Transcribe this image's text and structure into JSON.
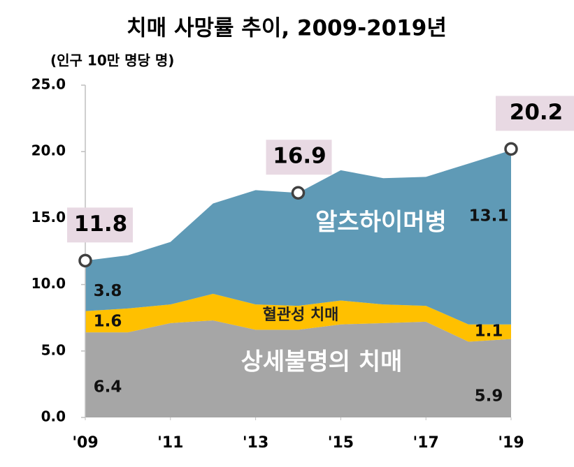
{
  "chart_data": {
    "type": "stacked_area",
    "title": "치매 사망률 추이, 2009-2019년",
    "y_label": "(인구 10만 명당 명)",
    "x": [
      2009,
      2010,
      2011,
      2012,
      2013,
      2014,
      2015,
      2016,
      2017,
      2018,
      2019
    ],
    "xlim": [
      2009,
      2019
    ],
    "xticks": [
      {
        "value": 2009,
        "label": "'09"
      },
      {
        "value": 2011,
        "label": "'11"
      },
      {
        "value": 2013,
        "label": "'13"
      },
      {
        "value": 2015,
        "label": "'15"
      },
      {
        "value": 2017,
        "label": "'17"
      },
      {
        "value": 2019,
        "label": "'19"
      }
    ],
    "ylim": [
      0,
      25
    ],
    "yticks": [
      {
        "value": 0,
        "label": "0.0"
      },
      {
        "value": 5,
        "label": "5.0"
      },
      {
        "value": 10,
        "label": "10.0"
      },
      {
        "value": 15,
        "label": "15.0"
      },
      {
        "value": 20,
        "label": "20.0"
      },
      {
        "value": 25,
        "label": "25.0"
      }
    ],
    "data_labels": "ends",
    "series": [
      {
        "name": "상세불명의 치매",
        "color": "#a6a6a6",
        "values": [
          6.4,
          6.4,
          7.1,
          7.3,
          6.6,
          6.6,
          7.0,
          7.1,
          7.2,
          5.7,
          5.9
        ]
      },
      {
        "name": "혈관성 치매",
        "color": "#ffc000",
        "values": [
          1.6,
          1.8,
          1.4,
          2.0,
          1.9,
          1.8,
          1.8,
          1.4,
          1.2,
          1.3,
          1.1
        ]
      },
      {
        "name": "알츠하이머병",
        "color": "#5f9ab6",
        "values": [
          3.8,
          4.0,
          4.7,
          6.8,
          8.6,
          8.5,
          9.8,
          9.5,
          9.7,
          12.1,
          13.1
        ]
      }
    ],
    "callouts": [
      {
        "x": 2009,
        "value": 11.8
      },
      {
        "x": 2014,
        "value": 16.9
      },
      {
        "x": 2019,
        "value": 20.2
      }
    ]
  }
}
